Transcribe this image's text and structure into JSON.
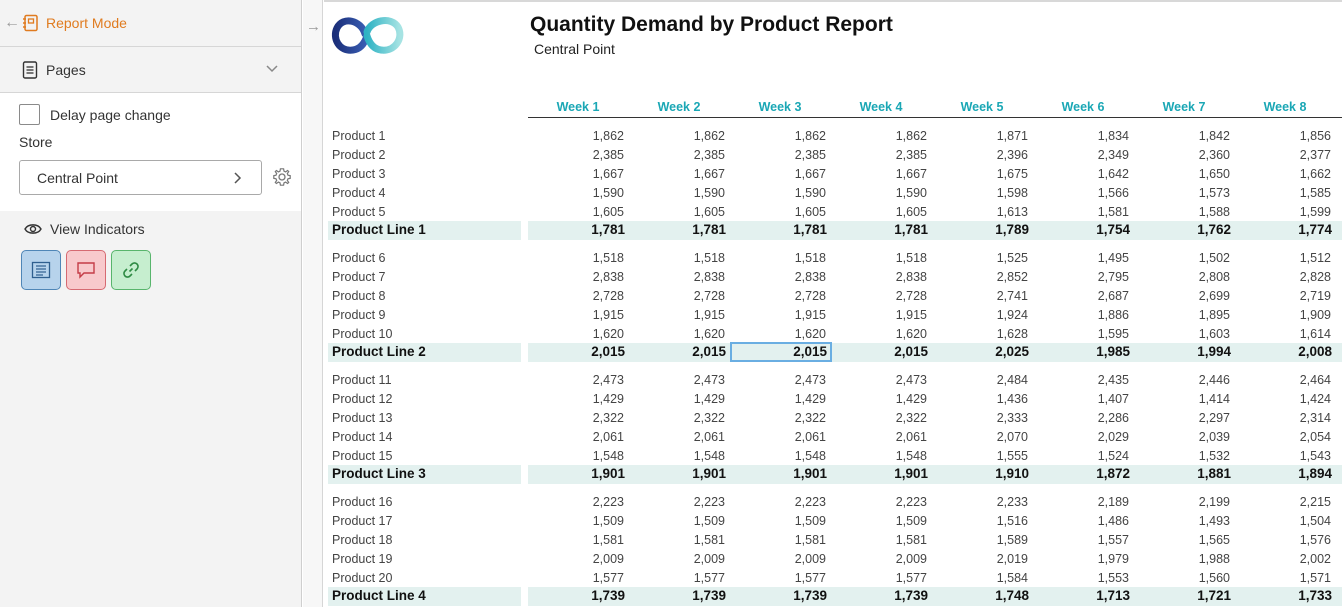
{
  "sidebar": {
    "title": "Report Mode",
    "pages_label": "Pages",
    "delay_label": "Delay page change",
    "store_label": "Store",
    "store_value": "Central Point",
    "view_indicators_label": "View Indicators"
  },
  "report": {
    "title": "Quantity Demand by Product Report",
    "subtitle": "Central Point",
    "weeks": [
      "Week 1",
      "Week 2",
      "Week 3",
      "Week 4",
      "Week 5",
      "Week 6",
      "Week 7",
      "Week 8"
    ],
    "groups": [
      {
        "products": [
          {
            "name": "Product 1",
            "values": [
              "1,862",
              "1,862",
              "1,862",
              "1,862",
              "1,871",
              "1,834",
              "1,842",
              "1,856"
            ]
          },
          {
            "name": "Product 2",
            "values": [
              "2,385",
              "2,385",
              "2,385",
              "2,385",
              "2,396",
              "2,349",
              "2,360",
              "2,377"
            ]
          },
          {
            "name": "Product 3",
            "values": [
              "1,667",
              "1,667",
              "1,667",
              "1,667",
              "1,675",
              "1,642",
              "1,650",
              "1,662"
            ]
          },
          {
            "name": "Product 4",
            "values": [
              "1,590",
              "1,590",
              "1,590",
              "1,590",
              "1,598",
              "1,566",
              "1,573",
              "1,585"
            ]
          },
          {
            "name": "Product 5",
            "values": [
              "1,605",
              "1,605",
              "1,605",
              "1,605",
              "1,613",
              "1,581",
              "1,588",
              "1,599"
            ]
          }
        ],
        "total": {
          "name": "Product Line 1",
          "values": [
            "1,781",
            "1,781",
            "1,781",
            "1,781",
            "1,789",
            "1,754",
            "1,762",
            "1,774"
          ]
        }
      },
      {
        "products": [
          {
            "name": "Product 6",
            "values": [
              "1,518",
              "1,518",
              "1,518",
              "1,518",
              "1,525",
              "1,495",
              "1,502",
              "1,512"
            ]
          },
          {
            "name": "Product 7",
            "values": [
              "2,838",
              "2,838",
              "2,838",
              "2,838",
              "2,852",
              "2,795",
              "2,808",
              "2,828"
            ]
          },
          {
            "name": "Product 8",
            "values": [
              "2,728",
              "2,728",
              "2,728",
              "2,728",
              "2,741",
              "2,687",
              "2,699",
              "2,719"
            ]
          },
          {
            "name": "Product 9",
            "values": [
              "1,915",
              "1,915",
              "1,915",
              "1,915",
              "1,924",
              "1,886",
              "1,895",
              "1,909"
            ]
          },
          {
            "name": "Product 10",
            "values": [
              "1,620",
              "1,620",
              "1,620",
              "1,620",
              "1,628",
              "1,595",
              "1,603",
              "1,614"
            ]
          }
        ],
        "total": {
          "name": "Product Line 2",
          "values": [
            "2,015",
            "2,015",
            "2,015",
            "2,015",
            "2,025",
            "1,985",
            "1,994",
            "2,008"
          ]
        }
      },
      {
        "products": [
          {
            "name": "Product 11",
            "values": [
              "2,473",
              "2,473",
              "2,473",
              "2,473",
              "2,484",
              "2,435",
              "2,446",
              "2,464"
            ]
          },
          {
            "name": "Product 12",
            "values": [
              "1,429",
              "1,429",
              "1,429",
              "1,429",
              "1,436",
              "1,407",
              "1,414",
              "1,424"
            ]
          },
          {
            "name": "Product 13",
            "values": [
              "2,322",
              "2,322",
              "2,322",
              "2,322",
              "2,333",
              "2,286",
              "2,297",
              "2,314"
            ]
          },
          {
            "name": "Product 14",
            "values": [
              "2,061",
              "2,061",
              "2,061",
              "2,061",
              "2,070",
              "2,029",
              "2,039",
              "2,054"
            ]
          },
          {
            "name": "Product 15",
            "values": [
              "1,548",
              "1,548",
              "1,548",
              "1,548",
              "1,555",
              "1,524",
              "1,532",
              "1,543"
            ]
          }
        ],
        "total": {
          "name": "Product Line 3",
          "values": [
            "1,901",
            "1,901",
            "1,901",
            "1,901",
            "1,910",
            "1,872",
            "1,881",
            "1,894"
          ]
        }
      },
      {
        "products": [
          {
            "name": "Product 16",
            "values": [
              "2,223",
              "2,223",
              "2,223",
              "2,223",
              "2,233",
              "2,189",
              "2,199",
              "2,215"
            ]
          },
          {
            "name": "Product 17",
            "values": [
              "1,509",
              "1,509",
              "1,509",
              "1,509",
              "1,516",
              "1,486",
              "1,493",
              "1,504"
            ]
          },
          {
            "name": "Product 18",
            "values": [
              "1,581",
              "1,581",
              "1,581",
              "1,581",
              "1,589",
              "1,557",
              "1,565",
              "1,576"
            ]
          },
          {
            "name": "Product 19",
            "values": [
              "2,009",
              "2,009",
              "2,009",
              "2,009",
              "2,019",
              "1,979",
              "1,988",
              "2,002"
            ]
          },
          {
            "name": "Product 20",
            "values": [
              "1,577",
              "1,577",
              "1,577",
              "1,577",
              "1,584",
              "1,553",
              "1,560",
              "1,571"
            ]
          }
        ],
        "total": {
          "name": "Product Line 4",
          "values": [
            "1,739",
            "1,739",
            "1,739",
            "1,739",
            "1,748",
            "1,713",
            "1,721",
            "1,733"
          ]
        }
      }
    ]
  },
  "colors": {
    "accent": "#e07b1f",
    "week_header": "#1aa7b5",
    "total_row_bg": "#e3f1ef",
    "selection": "#6aaee2"
  }
}
